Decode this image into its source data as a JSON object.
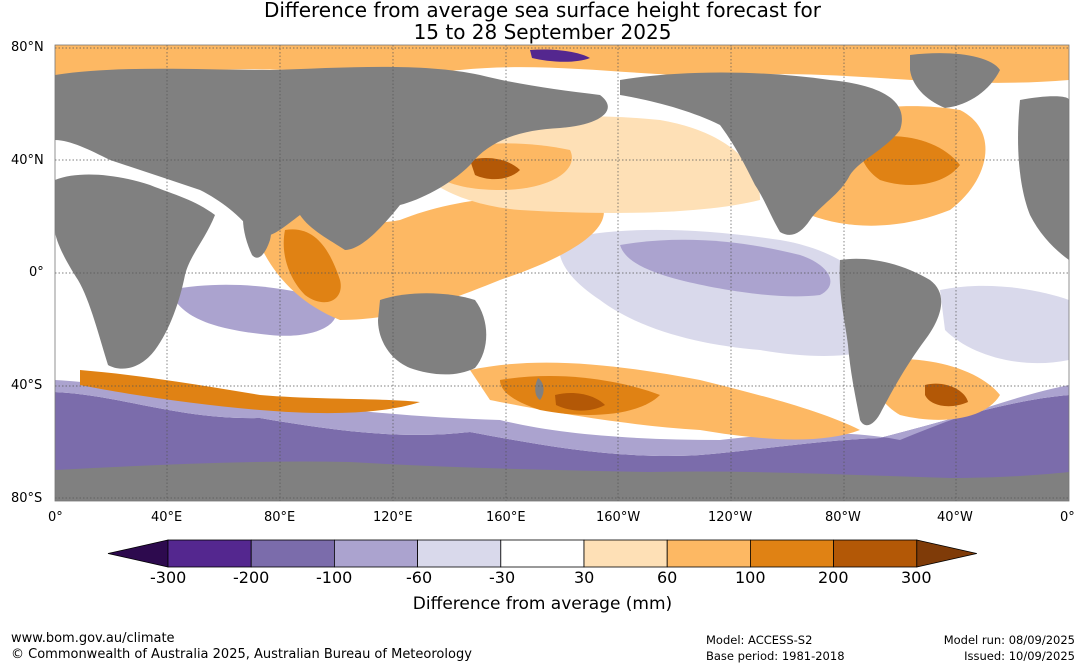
{
  "title": {
    "line1": "Difference from average sea surface height forecast for",
    "line2": "15 to 28 September 2025"
  },
  "map": {
    "lat_labels": [
      "80°N",
      "40°N",
      "0°",
      "40°S",
      "80°S"
    ],
    "lon_labels": [
      "0°",
      "40°E",
      "80°E",
      "120°E",
      "160°E",
      "160°W",
      "120°W",
      "80°W",
      "40°W",
      "0°"
    ],
    "land_color": "#808080",
    "ocean_neutral_color": "#ffffff"
  },
  "colorbar": {
    "title": "Difference from average (mm)",
    "unit": "mm",
    "ticks": [
      "-300",
      "-200",
      "-100",
      "-60",
      "-30",
      "30",
      "60",
      "100",
      "200",
      "300"
    ],
    "colors": [
      "#2d0a4e",
      "#54278f",
      "#7b6cab",
      "#aba3cf",
      "#d9d9eb",
      "#ffffff",
      "#fee0b6",
      "#fdb863",
      "#e08214",
      "#b35806",
      "#7f3b08"
    ]
  },
  "footer": {
    "website": "www.bom.gov.au/climate",
    "copyright": "© Commonwealth of Australia 2025, Australian Bureau of Meteorology",
    "model": "Model: ACCESS-S2",
    "base_period": "Base period: 1981-2018",
    "model_run": "Model run: 08/09/2025",
    "issued": "Issued: 10/09/2025"
  }
}
